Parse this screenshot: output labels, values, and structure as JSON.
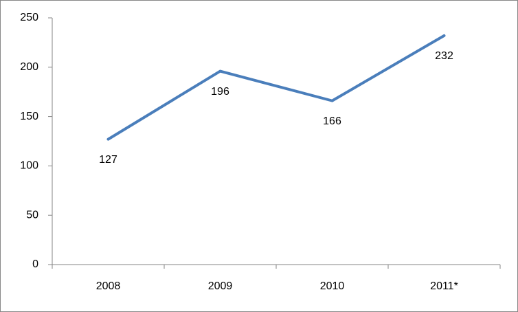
{
  "chart_data": {
    "type": "line",
    "categories": [
      "2008",
      "2009",
      "2010",
      "2011*"
    ],
    "values": [
      127,
      196,
      166,
      232
    ],
    "color": "#4a7ebb",
    "ylim": [
      0,
      250
    ],
    "yticks": [
      0,
      50,
      100,
      150,
      200,
      250
    ],
    "grid": false
  }
}
